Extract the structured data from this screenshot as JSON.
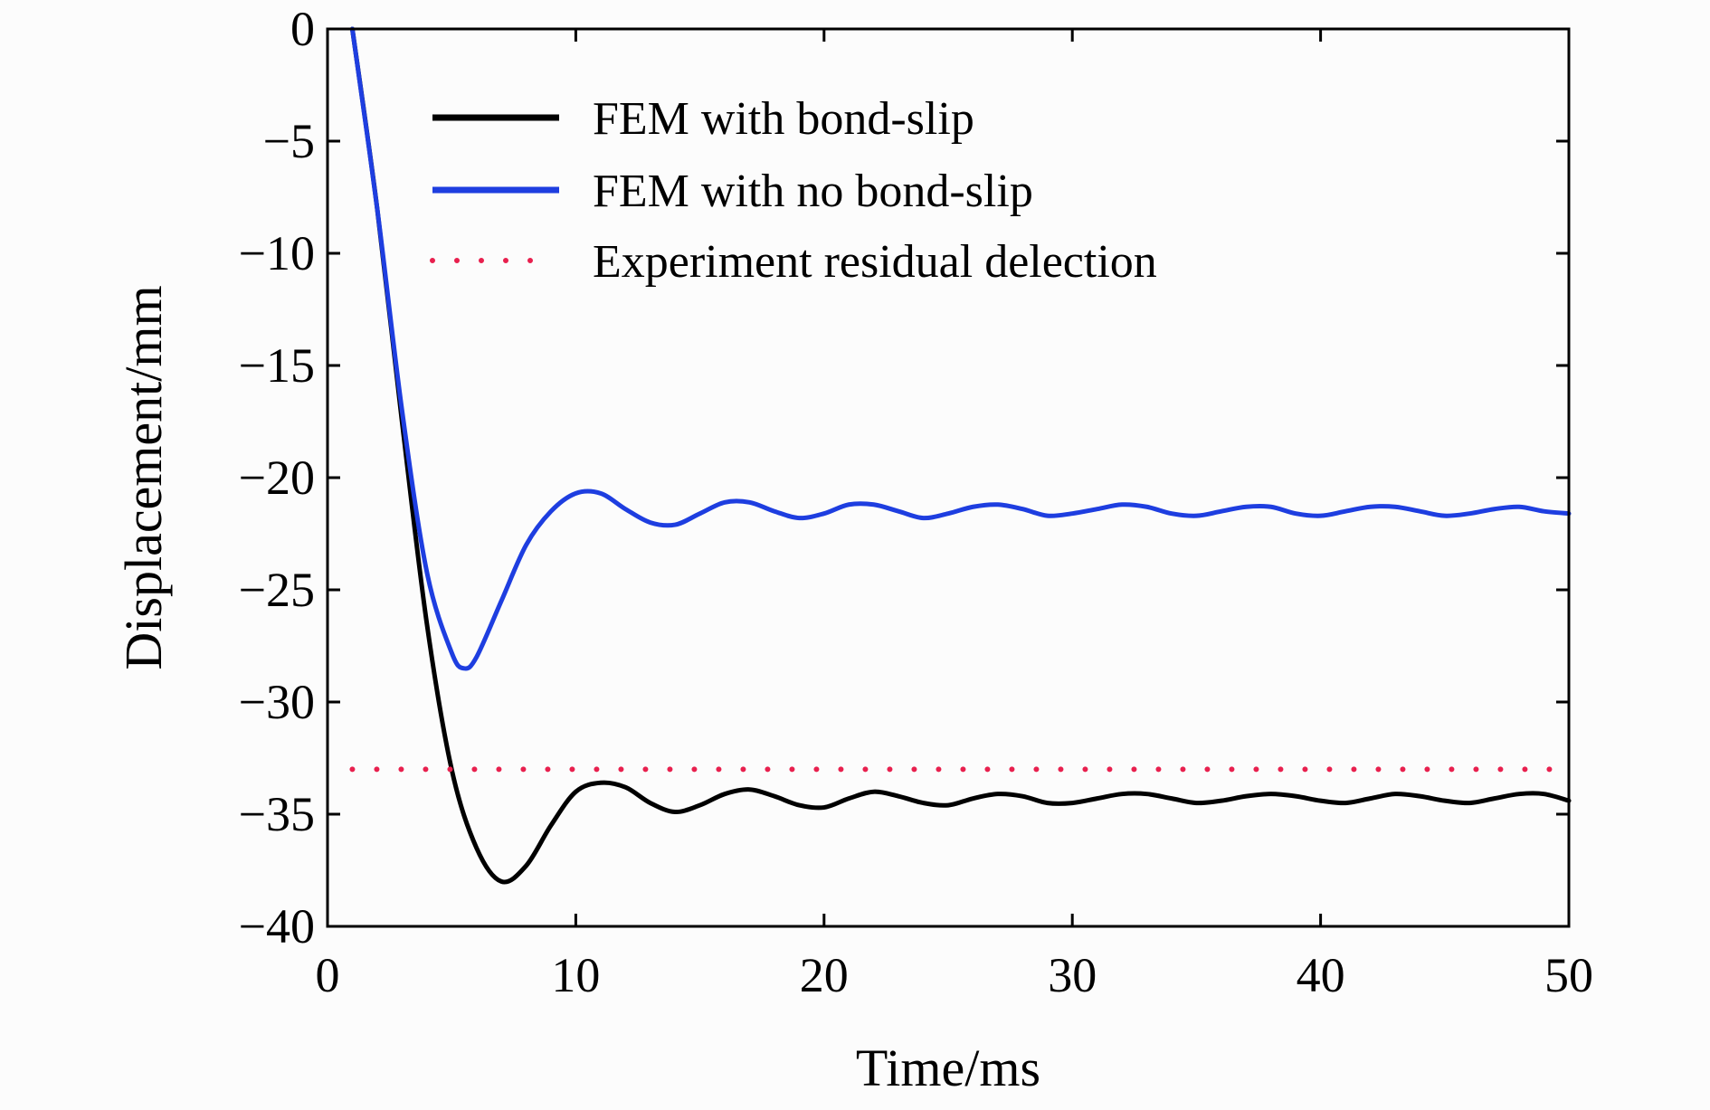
{
  "chart_data": {
    "type": "line",
    "title": "",
    "xlabel": "Time/ms",
    "ylabel": "Displacement/mm",
    "xlim": [
      0,
      50
    ],
    "ylim": [
      -40,
      0
    ],
    "xticks": [
      0,
      10,
      20,
      30,
      40,
      50
    ],
    "xtick_labels": [
      "0",
      "10",
      "20",
      "30",
      "40",
      "50"
    ],
    "yticks": [
      0,
      -5,
      -10,
      -15,
      -20,
      -25,
      -30,
      -35,
      -40
    ],
    "ytick_labels": [
      "0",
      "−5",
      "−10",
      "−15",
      "−20",
      "−25",
      "−30",
      "−35",
      "−40"
    ],
    "grid": false,
    "legend_position": "top-right",
    "series": [
      {
        "name": "FEM with bond-slip",
        "color": "#000000",
        "style": "solid",
        "x": [
          1.0,
          2.0,
          3.0,
          4.0,
          5.0,
          6.0,
          7.0,
          8.0,
          9.0,
          10.0,
          11.0,
          12.0,
          13.0,
          14.0,
          15.0,
          16.0,
          17.0,
          18.0,
          19.0,
          20.0,
          21.0,
          22.0,
          23.0,
          24.0,
          25.0,
          26.0,
          27.0,
          28.0,
          29.0,
          30.0,
          31.0,
          32.0,
          33.0,
          34.0,
          35.0,
          36.0,
          37.0,
          38.0,
          39.0,
          40.0,
          41.0,
          42.0,
          43.0,
          44.0,
          45.0,
          46.0,
          47.0,
          48.0,
          49.0,
          50.0
        ],
        "y": [
          0.0,
          -8.0,
          -17.5,
          -26.5,
          -33.0,
          -36.5,
          -38.0,
          -37.3,
          -35.5,
          -34.0,
          -33.6,
          -33.8,
          -34.5,
          -34.9,
          -34.6,
          -34.1,
          -33.9,
          -34.2,
          -34.6,
          -34.7,
          -34.3,
          -34.0,
          -34.2,
          -34.5,
          -34.6,
          -34.3,
          -34.1,
          -34.2,
          -34.5,
          -34.5,
          -34.3,
          -34.1,
          -34.1,
          -34.3,
          -34.5,
          -34.4,
          -34.2,
          -34.1,
          -34.2,
          -34.4,
          -34.5,
          -34.3,
          -34.1,
          -34.2,
          -34.4,
          -34.5,
          -34.3,
          -34.1,
          -34.1,
          -34.4
        ]
      },
      {
        "name": "FEM with no bond-slip",
        "color": "#1e3ee0",
        "style": "solid",
        "x": [
          1.0,
          2.0,
          3.0,
          4.0,
          5.0,
          5.5,
          6.0,
          7.0,
          8.0,
          9.0,
          10.0,
          11.0,
          12.0,
          13.0,
          14.0,
          15.0,
          16.0,
          17.0,
          18.0,
          19.0,
          20.0,
          21.0,
          22.0,
          23.0,
          24.0,
          25.0,
          26.0,
          27.0,
          28.0,
          29.0,
          30.0,
          31.0,
          32.0,
          33.0,
          34.0,
          35.0,
          36.0,
          37.0,
          38.0,
          39.0,
          40.0,
          41.0,
          42.0,
          43.0,
          44.0,
          45.0,
          46.0,
          47.0,
          48.0,
          49.0,
          50.0
        ],
        "y": [
          0.0,
          -8.0,
          -17.0,
          -24.2,
          -27.8,
          -28.5,
          -28.0,
          -25.5,
          -23.0,
          -21.5,
          -20.7,
          -20.7,
          -21.4,
          -22.0,
          -22.1,
          -21.6,
          -21.1,
          -21.1,
          -21.5,
          -21.8,
          -21.6,
          -21.2,
          -21.2,
          -21.5,
          -21.8,
          -21.6,
          -21.3,
          -21.2,
          -21.4,
          -21.7,
          -21.6,
          -21.4,
          -21.2,
          -21.3,
          -21.6,
          -21.7,
          -21.5,
          -21.3,
          -21.3,
          -21.6,
          -21.7,
          -21.5,
          -21.3,
          -21.3,
          -21.5,
          -21.7,
          -21.6,
          -21.4,
          -21.3,
          -21.5,
          -21.6
        ]
      },
      {
        "name": "Experiment residual delection",
        "color": "#e8204e",
        "style": "dotted",
        "x": [
          1.0,
          50.0
        ],
        "y": [
          -33.0,
          -33.0
        ]
      }
    ]
  }
}
